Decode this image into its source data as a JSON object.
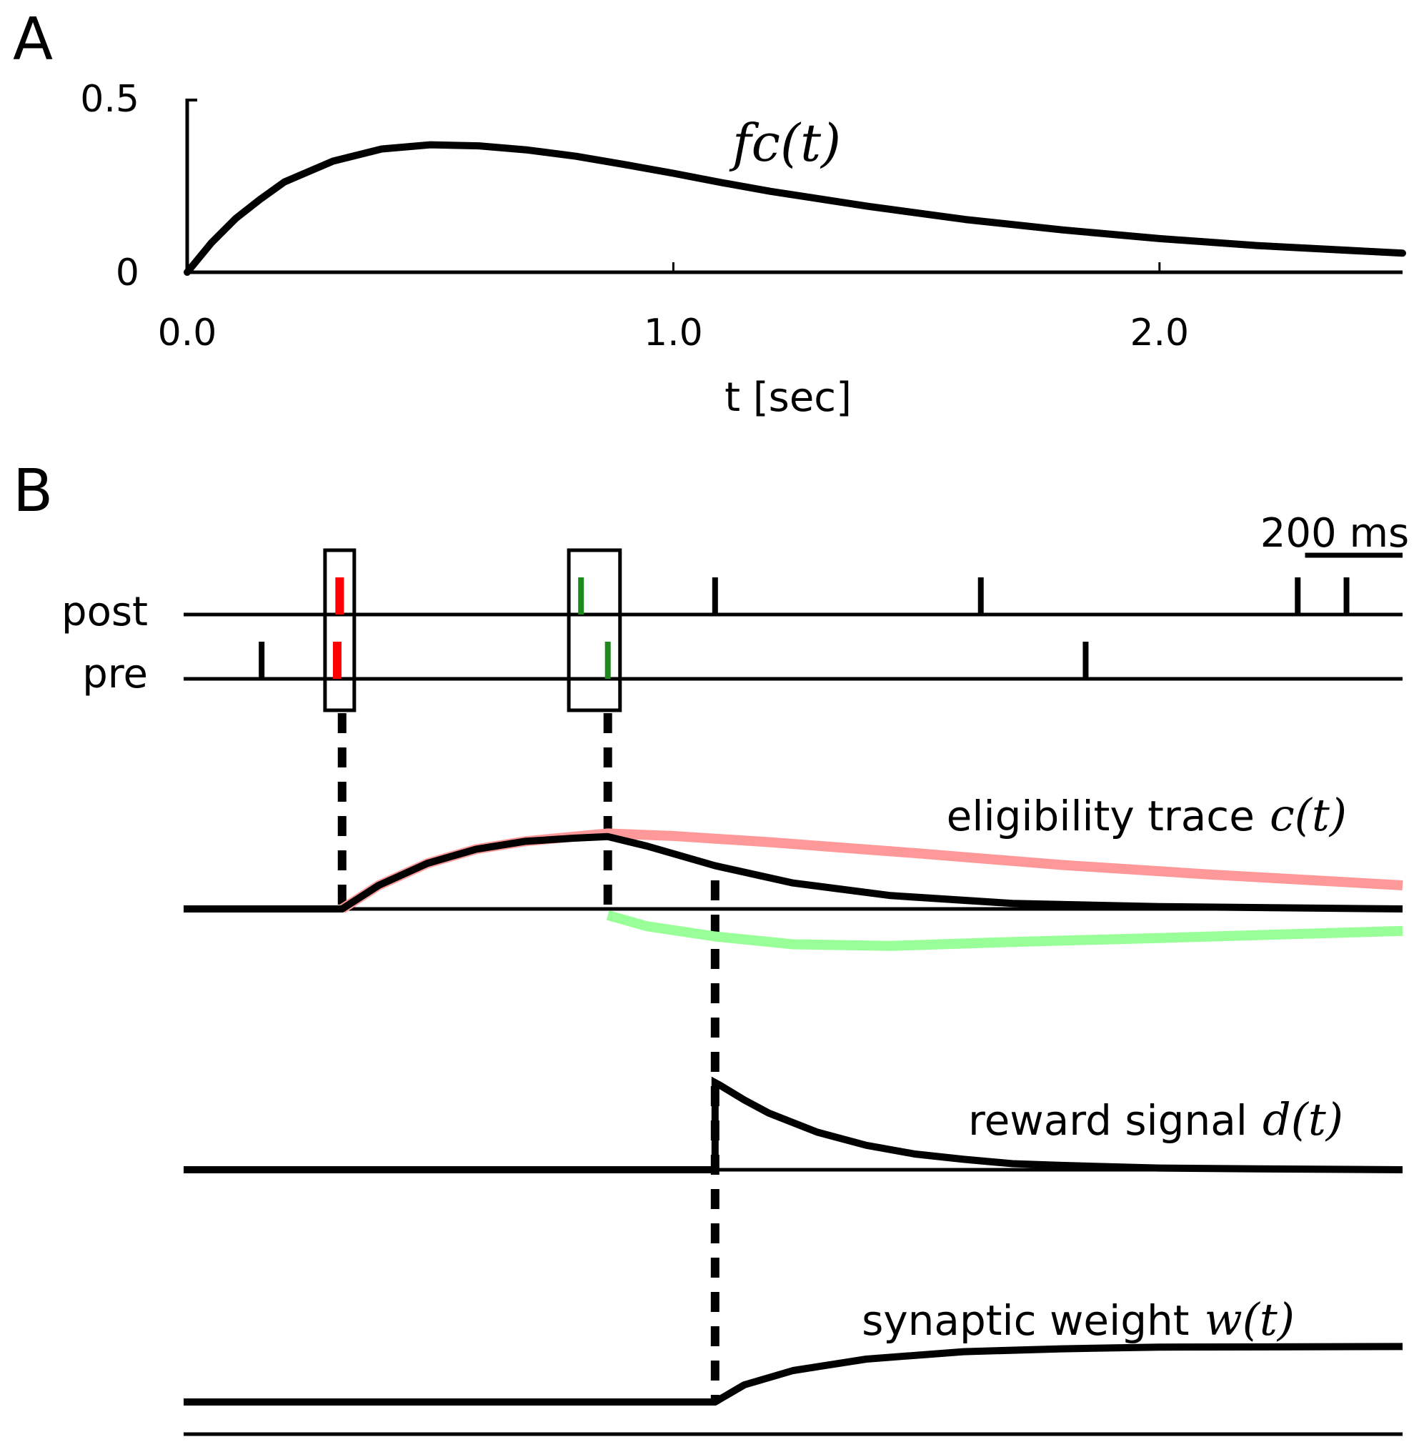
{
  "panels": {
    "a": "A",
    "b": "B"
  },
  "chart_data": [
    {
      "type": "line",
      "panel": "A",
      "x_unit": "sec",
      "xlabel": "t [sec]",
      "ylabel": "",
      "xlim": [
        0.0,
        2.5
      ],
      "ylim": [
        0,
        0.5
      ],
      "xticks": [
        {
          "value": 0.0,
          "label": "0.0"
        },
        {
          "value": 1.0,
          "label": "1.0"
        },
        {
          "value": 2.0,
          "label": "2.0"
        }
      ],
      "yticks": [
        {
          "value": 0,
          "label": "0"
        },
        {
          "value": 0.5,
          "label": "0.5"
        }
      ],
      "series": [
        {
          "name": "f_c(t)",
          "label": "fc(t)",
          "x": [
            0.0,
            0.05,
            0.1,
            0.15,
            0.2,
            0.3,
            0.4,
            0.5,
            0.6,
            0.7,
            0.8,
            0.9,
            1.0,
            1.1,
            1.2,
            1.4,
            1.6,
            1.8,
            2.0,
            2.2,
            2.5
          ],
          "y": [
            0.0,
            0.085,
            0.155,
            0.21,
            0.26,
            0.32,
            0.355,
            0.367,
            0.364,
            0.352,
            0.334,
            0.31,
            0.285,
            0.258,
            0.233,
            0.19,
            0.152,
            0.122,
            0.097,
            0.077,
            0.055
          ]
        }
      ],
      "grid": false,
      "legend": "none"
    },
    {
      "type": "line",
      "panel": "B",
      "x_unit": "ms",
      "xlim": [
        0,
        2500
      ],
      "scale_bar": {
        "label": "200 ms",
        "length_ms": 200
      },
      "spike_trains": [
        {
          "name": "post",
          "label": "post",
          "spikes": [
            {
              "t": 320,
              "color": "#ff0000"
            },
            {
              "t": 815,
              "color": "#1e8a1e"
            },
            {
              "t": 1090,
              "color": "#000000"
            },
            {
              "t": 1635,
              "color": "#000000"
            },
            {
              "t": 2285,
              "color": "#000000"
            },
            {
              "t": 2385,
              "color": "#000000"
            }
          ]
        },
        {
          "name": "pre",
          "label": "pre",
          "spikes": [
            {
              "t": 160,
              "color": "#000000"
            },
            {
              "t": 315,
              "color": "#ff0000"
            },
            {
              "t": 870,
              "color": "#1e8a1e"
            },
            {
              "t": 1850,
              "color": "#000000"
            }
          ]
        }
      ],
      "pairing_boxes_ms": [
        [
          290,
          350
        ],
        [
          790,
          895
        ]
      ],
      "event_times_ms": [
        325,
        870,
        1090
      ],
      "traces": [
        {
          "name": "eligibility trace c(t)",
          "label": "eligibility trace",
          "symbol": "c(t)",
          "series": [
            {
              "name": "c(t)",
              "color": "#000000",
              "x": [
                0,
                325,
                400,
                500,
                600,
                700,
                800,
                870,
                950,
                1090,
                1250,
                1450,
                1700,
                2000,
                2500
              ],
              "y": [
                0,
                0,
                0.3,
                0.58,
                0.76,
                0.86,
                0.9,
                0.92,
                0.8,
                0.55,
                0.33,
                0.17,
                0.07,
                0.03,
                0.0
              ]
            },
            {
              "name": "potentiation component",
              "color": "#ff9999",
              "x": [
                325,
                400,
                500,
                600,
                700,
                800,
                870,
                1000,
                1200,
                1500,
                1800,
                2100,
                2500
              ],
              "y": [
                0,
                0.3,
                0.58,
                0.76,
                0.86,
                0.92,
                0.96,
                0.93,
                0.85,
                0.71,
                0.56,
                0.44,
                0.3
              ]
            },
            {
              "name": "depression component",
              "color": "#99ff99",
              "x": [
                870,
                950,
                1090,
                1250,
                1450,
                1700,
                2000,
                2500
              ],
              "y": [
                -0.08,
                -0.22,
                -0.35,
                -0.45,
                -0.47,
                -0.42,
                -0.37,
                -0.28
              ]
            }
          ]
        },
        {
          "name": "reward signal d(t)",
          "label": "reward signal",
          "symbol": "d(t)",
          "series": [
            {
              "name": "d(t)",
              "color": "#000000",
              "x": [
                0,
                1090,
                1090,
                1100,
                1150,
                1200,
                1300,
                1400,
                1500,
                1600,
                1700,
                1800,
                2000,
                2200,
                2500
              ],
              "y": [
                0,
                0,
                1.0,
                0.97,
                0.8,
                0.65,
                0.43,
                0.28,
                0.18,
                0.12,
                0.07,
                0.05,
                0.02,
                0.01,
                0.0
              ]
            }
          ]
        },
        {
          "name": "synaptic weight w(t)",
          "label": "synaptic weight",
          "symbol": "w(t)",
          "series": [
            {
              "name": "w(t)",
              "color": "#000000",
              "x": [
                0,
                1090,
                1150,
                1250,
                1400,
                1600,
                1800,
                2000,
                2500
              ],
              "y": [
                0,
                0,
                0.3,
                0.55,
                0.75,
                0.88,
                0.93,
                0.96,
                0.97
              ]
            }
          ]
        }
      ],
      "grid": false,
      "legend": "none"
    }
  ]
}
